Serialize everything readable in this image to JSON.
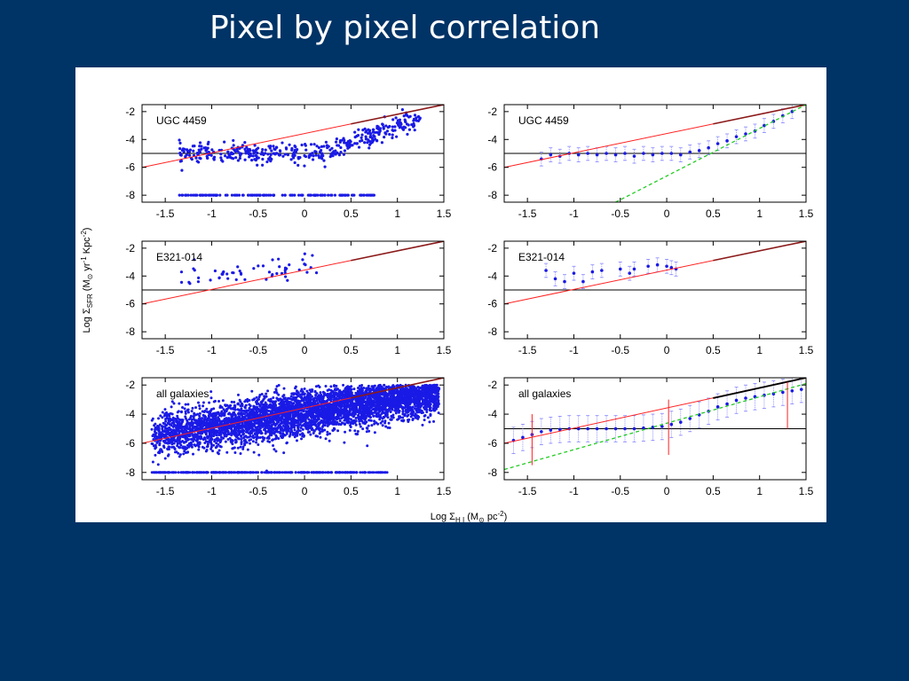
{
  "slide": {
    "title": "Pixel by pixel correlation"
  },
  "figure": {
    "xlabel": "Log  Σ",
    "xlabel_sub": "H I",
    "xlabel_units": " (M",
    "xlabel_units_sub": "⊙",
    "xlabel_units_end": " pc",
    "xlabel_sup": "-2",
    "xlabel_close": ")",
    "ylabel": "Log  Σ",
    "ylabel_sub": "SFR",
    "ylabel_units": " (M",
    "ylabel_units_sub": "⊙",
    "ylabel_yr": " yr",
    "ylabel_yr_sup": "-1",
    "ylabel_kpc": " Kpc",
    "ylabel_kpc_sup": "-2",
    "ylabel_close": ")"
  },
  "colors": {
    "points": "#1a1ae6",
    "errorbars": "#8080ff",
    "kennicutt": "#ff2020",
    "kennicutt_dark": "#8b1a1a",
    "threshold": "#000000",
    "fit": "#22cc22",
    "high_bar": "#000000"
  },
  "chart_data": [
    {
      "type": "scatter",
      "panel": "top-left",
      "label": "UGC 4459",
      "xlim": [
        -1.75,
        1.5
      ],
      "ylim": [
        -8.5,
        -1.5
      ],
      "xticks": [
        "-1.5",
        "-1",
        "-0.5",
        "0",
        "0.5",
        "1",
        "1.5"
      ],
      "yticks": [
        "-2",
        "-4",
        "-6",
        "-8"
      ],
      "kennicutt": [
        [
          -1.75,
          -6.0
        ],
        [
          1.5,
          -1.5
        ]
      ],
      "threshold": -5,
      "points": "dense scatter of pixel values; detection floor at -8"
    },
    {
      "type": "scatter",
      "panel": "top-right",
      "label": "UGC 4459",
      "xlim": [
        -1.75,
        1.5
      ],
      "ylim": [
        -8.5,
        -1.5
      ],
      "xticks": [
        "-1.5",
        "-1",
        "-0.5",
        "0",
        "0.5",
        "1",
        "1.5"
      ],
      "yticks": [
        "-2",
        "-4",
        "-6",
        "-8"
      ],
      "kennicutt": [
        [
          -1.75,
          -6.0
        ],
        [
          1.5,
          -1.5
        ]
      ],
      "threshold": -5,
      "fit": [
        [
          -0.55,
          -8.5
        ],
        [
          1.5,
          -1.5
        ]
      ],
      "binned": [
        [
          -1.35,
          -5.4
        ],
        [
          -1.25,
          -5.1
        ],
        [
          -1.15,
          -5.2
        ],
        [
          -1.05,
          -5.0
        ],
        [
          -0.95,
          -5.1
        ],
        [
          -0.85,
          -5.0
        ],
        [
          -0.75,
          -5.1
        ],
        [
          -0.65,
          -5.0
        ],
        [
          -0.55,
          -5.1
        ],
        [
          -0.45,
          -5.0
        ],
        [
          -0.35,
          -5.2
        ],
        [
          -0.25,
          -5.0
        ],
        [
          -0.15,
          -5.1
        ],
        [
          -0.05,
          -5.0
        ],
        [
          0.05,
          -5.0
        ],
        [
          0.15,
          -5.1
        ],
        [
          0.25,
          -4.9
        ],
        [
          0.35,
          -4.8
        ],
        [
          0.45,
          -4.6
        ],
        [
          0.55,
          -4.3
        ],
        [
          0.65,
          -4.1
        ],
        [
          0.75,
          -3.8
        ],
        [
          0.85,
          -3.6
        ],
        [
          0.95,
          -3.4
        ],
        [
          1.05,
          -3.0
        ],
        [
          1.15,
          -2.7
        ],
        [
          1.25,
          -2.3
        ],
        [
          1.35,
          -2.0
        ]
      ]
    },
    {
      "type": "scatter",
      "panel": "middle-left",
      "label": "E321-014",
      "xlim": [
        -1.75,
        1.5
      ],
      "ylim": [
        -8.5,
        -1.5
      ],
      "xticks": [
        "-1.5",
        "-1",
        "-0.5",
        "0",
        "0.5",
        "1",
        "1.5"
      ],
      "yticks": [
        "-2",
        "-4",
        "-6",
        "-8"
      ],
      "kennicutt": [
        [
          -1.75,
          -6.0
        ],
        [
          1.5,
          -1.5
        ]
      ],
      "threshold": -5
    },
    {
      "type": "scatter",
      "panel": "middle-right",
      "label": "E321-014",
      "xlim": [
        -1.75,
        1.5
      ],
      "ylim": [
        -8.5,
        -1.5
      ],
      "xticks": [
        "-1.5",
        "-1",
        "-0.5",
        "0",
        "0.5",
        "1",
        "1.5"
      ],
      "yticks": [
        "-2",
        "-4",
        "-6",
        "-8"
      ],
      "kennicutt": [
        [
          -1.75,
          -6.0
        ],
        [
          1.5,
          -1.5
        ]
      ],
      "threshold": -5,
      "binned": [
        [
          -1.3,
          -3.6
        ],
        [
          -1.2,
          -4.2
        ],
        [
          -1.1,
          -4.4
        ],
        [
          -1.0,
          -3.8
        ],
        [
          -0.9,
          -4.4
        ],
        [
          -0.8,
          -3.7
        ],
        [
          -0.7,
          -3.6
        ],
        [
          -0.5,
          -3.5
        ],
        [
          -0.4,
          -3.8
        ],
        [
          -0.35,
          -3.5
        ],
        [
          -0.2,
          -3.3
        ],
        [
          -0.1,
          -3.2
        ],
        [
          0.0,
          -3.3
        ],
        [
          0.05,
          -3.4
        ],
        [
          0.1,
          -3.5
        ]
      ]
    },
    {
      "type": "scatter",
      "panel": "bottom-left",
      "label": "all galaxies",
      "xlim": [
        -1.75,
        1.5
      ],
      "ylim": [
        -8.5,
        -1.5
      ],
      "xticks": [
        "-1.5",
        "-1",
        "-0.5",
        "0",
        "0.5",
        "1",
        "1.5"
      ],
      "yticks": [
        "-2",
        "-4",
        "-6",
        "-8"
      ],
      "kennicutt": [
        [
          -1.75,
          -6.0
        ],
        [
          1.5,
          -1.5
        ]
      ]
    },
    {
      "type": "scatter",
      "panel": "bottom-right",
      "label": "all galaxies",
      "xlim": [
        -1.75,
        1.5
      ],
      "ylim": [
        -8.5,
        -1.5
      ],
      "xticks": [
        "-1.5",
        "-1",
        "-0.5",
        "0",
        "0.5",
        "1",
        "1.5"
      ],
      "yticks": [
        "-2",
        "-4",
        "-6",
        "-8"
      ],
      "kennicutt": [
        [
          -1.75,
          -6.0
        ],
        [
          1.5,
          -1.5
        ]
      ],
      "threshold": -5,
      "fit": [
        [
          -1.75,
          -7.8
        ],
        [
          1.5,
          -1.9
        ]
      ],
      "high_bar": [
        [
          0.5,
          -2.9
        ],
        [
          1.5,
          -1.5
        ]
      ],
      "vertical_bars": [
        [
          -1.45,
          -7.5,
          -4.0
        ],
        [
          0.02,
          -6.8,
          -3.0
        ],
        [
          1.3,
          -5.0,
          -1.8
        ]
      ],
      "binned": [
        [
          -1.65,
          -5.8
        ],
        [
          -1.55,
          -5.6
        ],
        [
          -1.45,
          -5.4
        ],
        [
          -1.35,
          -5.2
        ],
        [
          -1.25,
          -5.1
        ],
        [
          -1.15,
          -5.05
        ],
        [
          -1.05,
          -5.0
        ],
        [
          -0.95,
          -5.0
        ],
        [
          -0.85,
          -5.0
        ],
        [
          -0.75,
          -5.0
        ],
        [
          -0.65,
          -5.0
        ],
        [
          -0.55,
          -5.0
        ],
        [
          -0.45,
          -5.0
        ],
        [
          -0.35,
          -5.0
        ],
        [
          -0.25,
          -4.95
        ],
        [
          -0.15,
          -4.9
        ],
        [
          -0.05,
          -4.85
        ],
        [
          0.05,
          -4.7
        ],
        [
          0.15,
          -4.55
        ],
        [
          0.25,
          -4.3
        ],
        [
          0.35,
          -4.05
        ],
        [
          0.45,
          -3.8
        ],
        [
          0.55,
          -3.5
        ],
        [
          0.65,
          -3.3
        ],
        [
          0.75,
          -3.05
        ],
        [
          0.85,
          -2.9
        ],
        [
          0.95,
          -2.8
        ],
        [
          1.05,
          -2.7
        ],
        [
          1.15,
          -2.6
        ],
        [
          1.25,
          -2.5
        ],
        [
          1.35,
          -2.4
        ],
        [
          1.45,
          -2.3
        ]
      ]
    }
  ]
}
